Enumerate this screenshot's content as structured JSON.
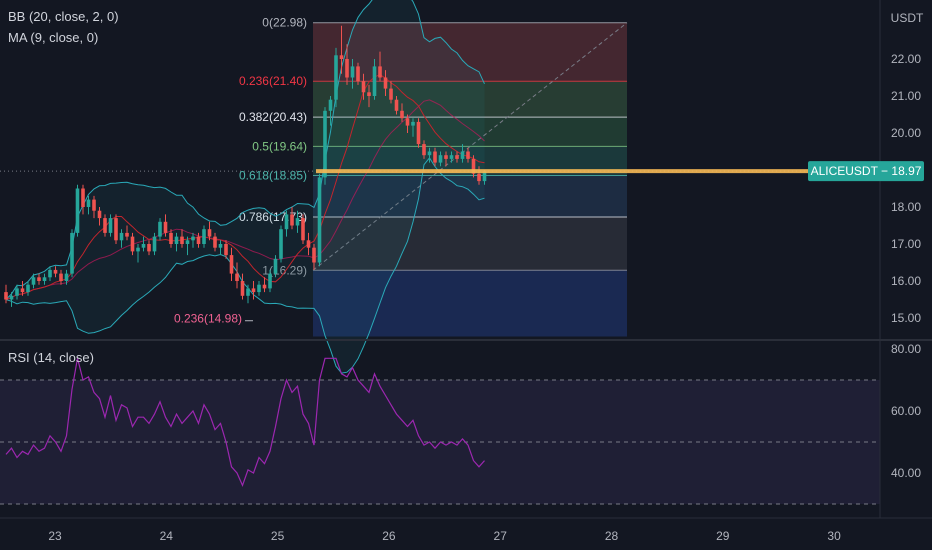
{
  "legend": {
    "bb": "BB (20, close, 2, 0)",
    "ma": "MA (9, close, 0)",
    "rsi": "RSI (14, close)"
  },
  "currency": "USDT",
  "price_tag": {
    "label": "ALICEUSDT",
    "separator": "−",
    "value": "18.97"
  },
  "colors": {
    "background": "#131722",
    "up": "#26a69a",
    "down": "#ef5350",
    "bb_band": "#2aa9b8",
    "ma": "#c2252d",
    "rsi_line": "#9c27b0",
    "price_line": "#f7b955"
  },
  "chart_data": [
    {
      "type": "candlestick",
      "x_ticks": [
        "23",
        "24",
        "25",
        "26",
        "27",
        "28",
        "29",
        "30"
      ],
      "y_ticks": [
        "15.00",
        "16.00",
        "17.00",
        "18.00",
        "19.00",
        "20.00",
        "21.00",
        "22.00"
      ],
      "ylim": [
        14.5,
        23.4
      ],
      "last_price": 18.97,
      "ohlc": [
        [
          15.7,
          15.9,
          15.4,
          15.5
        ],
        [
          15.5,
          15.7,
          15.3,
          15.6
        ],
        [
          15.6,
          15.9,
          15.5,
          15.8
        ],
        [
          15.8,
          16.0,
          15.6,
          15.7
        ],
        [
          15.7,
          16.0,
          15.6,
          15.9
        ],
        [
          15.9,
          16.2,
          15.8,
          16.1
        ],
        [
          16.1,
          16.2,
          15.9,
          16.0
        ],
        [
          16.0,
          16.2,
          15.9,
          16.1
        ],
        [
          16.1,
          16.4,
          16.0,
          16.3
        ],
        [
          16.3,
          16.4,
          16.1,
          16.2
        ],
        [
          16.2,
          16.3,
          15.9,
          16.0
        ],
        [
          16.0,
          16.3,
          15.9,
          16.2
        ],
        [
          16.2,
          17.4,
          16.1,
          17.3
        ],
        [
          17.3,
          18.6,
          17.2,
          18.5
        ],
        [
          18.5,
          18.6,
          17.8,
          18.0
        ],
        [
          18.0,
          18.3,
          17.8,
          18.2
        ],
        [
          18.2,
          18.3,
          17.7,
          17.9
        ],
        [
          17.9,
          18.0,
          17.5,
          17.7
        ],
        [
          17.7,
          17.8,
          17.2,
          17.3
        ],
        [
          17.3,
          17.8,
          17.2,
          17.7
        ],
        [
          17.7,
          17.8,
          17.0,
          17.1
        ],
        [
          17.1,
          17.4,
          16.9,
          17.3
        ],
        [
          17.3,
          17.5,
          17.1,
          17.2
        ],
        [
          17.2,
          17.3,
          16.7,
          16.8
        ],
        [
          16.8,
          17.0,
          16.5,
          16.9
        ],
        [
          16.9,
          17.2,
          16.8,
          17.0
        ],
        [
          17.0,
          17.1,
          16.7,
          16.8
        ],
        [
          16.8,
          17.3,
          16.7,
          17.2
        ],
        [
          17.2,
          17.7,
          17.1,
          17.6
        ],
        [
          17.6,
          17.8,
          17.2,
          17.3
        ],
        [
          17.3,
          17.4,
          16.9,
          17.0
        ],
        [
          17.0,
          17.3,
          16.8,
          17.2
        ],
        [
          17.2,
          17.4,
          16.9,
          17.0
        ],
        [
          17.0,
          17.2,
          16.7,
          17.1
        ],
        [
          17.1,
          17.3,
          16.9,
          17.2
        ],
        [
          17.2,
          17.3,
          16.9,
          17.0
        ],
        [
          17.0,
          17.5,
          16.9,
          17.4
        ],
        [
          17.4,
          17.6,
          17.1,
          17.2
        ],
        [
          17.2,
          17.3,
          16.8,
          16.9
        ],
        [
          16.9,
          17.1,
          16.7,
          17.0
        ],
        [
          17.0,
          17.1,
          16.6,
          16.7
        ],
        [
          16.7,
          16.9,
          16.0,
          16.2
        ],
        [
          16.2,
          16.5,
          15.8,
          16.0
        ],
        [
          16.0,
          16.2,
          15.5,
          15.6
        ],
        [
          15.6,
          15.9,
          15.4,
          15.8
        ],
        [
          15.8,
          16.0,
          15.5,
          15.7
        ],
        [
          15.7,
          16.0,
          15.6,
          15.9
        ],
        [
          15.9,
          16.1,
          15.7,
          15.8
        ],
        [
          15.8,
          16.3,
          15.7,
          16.2
        ],
        [
          16.2,
          16.7,
          16.1,
          16.6
        ],
        [
          16.6,
          17.5,
          16.5,
          17.4
        ],
        [
          17.4,
          17.9,
          17.2,
          17.8
        ],
        [
          17.8,
          18.0,
          17.4,
          17.5
        ],
        [
          17.5,
          17.9,
          17.3,
          17.7
        ],
        [
          17.7,
          17.8,
          17.0,
          17.1
        ],
        [
          17.1,
          17.3,
          16.7,
          16.9
        ],
        [
          16.9,
          17.0,
          16.3,
          16.5
        ],
        [
          16.5,
          18.9,
          16.4,
          18.8
        ],
        [
          18.8,
          20.7,
          18.6,
          20.6
        ],
        [
          20.6,
          21.0,
          20.2,
          20.9
        ],
        [
          20.9,
          22.3,
          20.7,
          22.1
        ],
        [
          22.1,
          22.9,
          21.6,
          22.0
        ],
        [
          22.0,
          22.4,
          21.3,
          21.5
        ],
        [
          21.5,
          22.0,
          21.2,
          21.8
        ],
        [
          21.8,
          21.9,
          21.3,
          21.4
        ],
        [
          21.4,
          21.6,
          20.9,
          21.1
        ],
        [
          21.1,
          21.3,
          20.7,
          21.0
        ],
        [
          21.0,
          22.0,
          20.9,
          21.8
        ],
        [
          21.8,
          22.2,
          21.4,
          21.5
        ],
        [
          21.5,
          21.7,
          21.0,
          21.2
        ],
        [
          21.2,
          21.4,
          20.8,
          20.9
        ],
        [
          20.9,
          21.0,
          20.5,
          20.6
        ],
        [
          20.6,
          20.8,
          20.3,
          20.4
        ],
        [
          20.4,
          20.5,
          20.0,
          20.2
        ],
        [
          20.2,
          20.4,
          19.9,
          20.3
        ],
        [
          20.3,
          20.4,
          19.6,
          19.7
        ],
        [
          19.7,
          19.8,
          19.3,
          19.4
        ],
        [
          19.4,
          19.6,
          19.2,
          19.5
        ],
        [
          19.5,
          19.6,
          19.1,
          19.2
        ],
        [
          19.2,
          19.5,
          19.1,
          19.4
        ],
        [
          19.4,
          19.5,
          19.1,
          19.3
        ],
        [
          19.3,
          19.5,
          19.2,
          19.4
        ],
        [
          19.4,
          19.5,
          19.2,
          19.3
        ],
        [
          19.3,
          19.7,
          19.2,
          19.5
        ],
        [
          19.5,
          19.6,
          19.2,
          19.3
        ],
        [
          19.3,
          19.4,
          18.8,
          18.9
        ],
        [
          18.9,
          19.1,
          18.6,
          18.7
        ],
        [
          18.7,
          19.0,
          18.6,
          18.97
        ]
      ],
      "fib_levels": [
        {
          "label": "0(22.98)",
          "value": 22.98,
          "color": "#b2b5be"
        },
        {
          "label": "0.236(21.40)",
          "value": 21.4,
          "color": "#f23645"
        },
        {
          "label": "0.382(20.43)",
          "value": 20.43,
          "color": "#e0e3eb"
        },
        {
          "label": "0.5(19.64)",
          "value": 19.64,
          "color": "#81c784"
        },
        {
          "label": "0.618(18.85)",
          "value": 18.85,
          "color": "#4db6ac"
        },
        {
          "label": "0.786(17.73)",
          "value": 17.73,
          "color": "#e0e3eb"
        },
        {
          "label": "1(16.29)",
          "value": 16.29,
          "color": "#9598a1"
        }
      ],
      "fib_low_label": "0.236(14.98)",
      "fib_low_value": 14.98
    },
    {
      "type": "line",
      "name": "RSI (14, close)",
      "y_ticks": [
        "40.00",
        "60.00",
        "80.00"
      ],
      "ylim": [
        23,
        82
      ],
      "levels": [
        70,
        50,
        30
      ],
      "values": [
        46,
        48,
        45,
        47,
        46,
        49,
        47,
        48,
        52,
        50,
        47,
        52,
        67,
        77,
        70,
        71,
        66,
        64,
        58,
        65,
        57,
        62,
        61,
        55,
        58,
        58,
        56,
        59,
        63,
        58,
        55,
        59,
        56,
        58,
        60,
        56,
        62,
        59,
        54,
        56,
        50,
        42,
        40,
        36,
        41,
        40,
        45,
        43,
        47,
        55,
        64,
        70,
        66,
        68,
        59,
        56,
        49,
        70,
        77,
        77,
        77,
        72,
        71,
        74,
        70,
        68,
        66,
        72,
        68,
        65,
        62,
        59,
        57,
        55,
        57,
        52,
        49,
        50,
        48,
        50,
        49,
        50,
        49,
        51,
        49,
        44,
        42,
        44
      ]
    }
  ]
}
